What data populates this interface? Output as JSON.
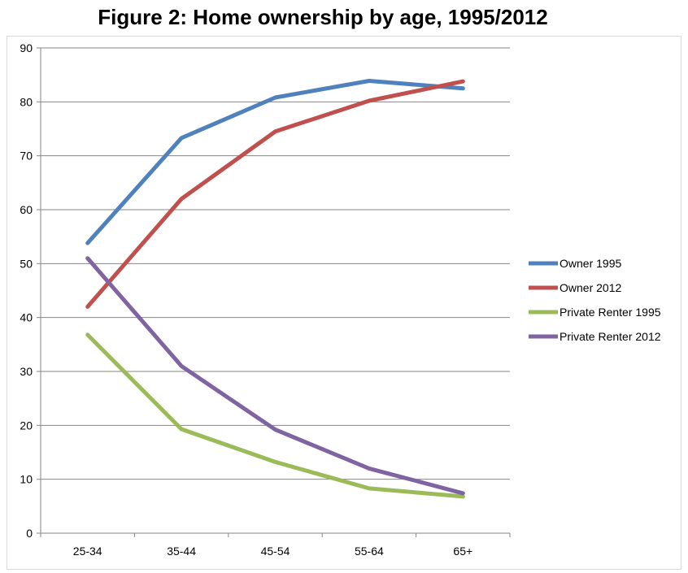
{
  "chart_data": {
    "type": "line",
    "title": "Figure 2: Home ownership by age, 1995/2012",
    "categories": [
      "25-34",
      "35-44",
      "45-54",
      "55-64",
      "65+"
    ],
    "ylim": [
      0,
      90
    ],
    "yticks": [
      0,
      10,
      20,
      30,
      40,
      50,
      60,
      70,
      80,
      90
    ],
    "grid": true,
    "legend": "right",
    "series": [
      {
        "name": "Owner 1995",
        "color": "#4f81bd",
        "values": [
          53.8,
          73.3,
          80.8,
          83.9,
          82.5
        ]
      },
      {
        "name": "Owner 2012",
        "color": "#c0504d",
        "values": [
          42.0,
          62.0,
          74.5,
          80.2,
          83.8
        ]
      },
      {
        "name": "Private Renter 1995",
        "color": "#9bbb59",
        "values": [
          36.8,
          19.3,
          13.2,
          8.3,
          6.8
        ]
      },
      {
        "name": "Private Renter 2012",
        "color": "#8064a2",
        "values": [
          51.0,
          31.0,
          19.2,
          12.0,
          7.4
        ]
      }
    ]
  }
}
